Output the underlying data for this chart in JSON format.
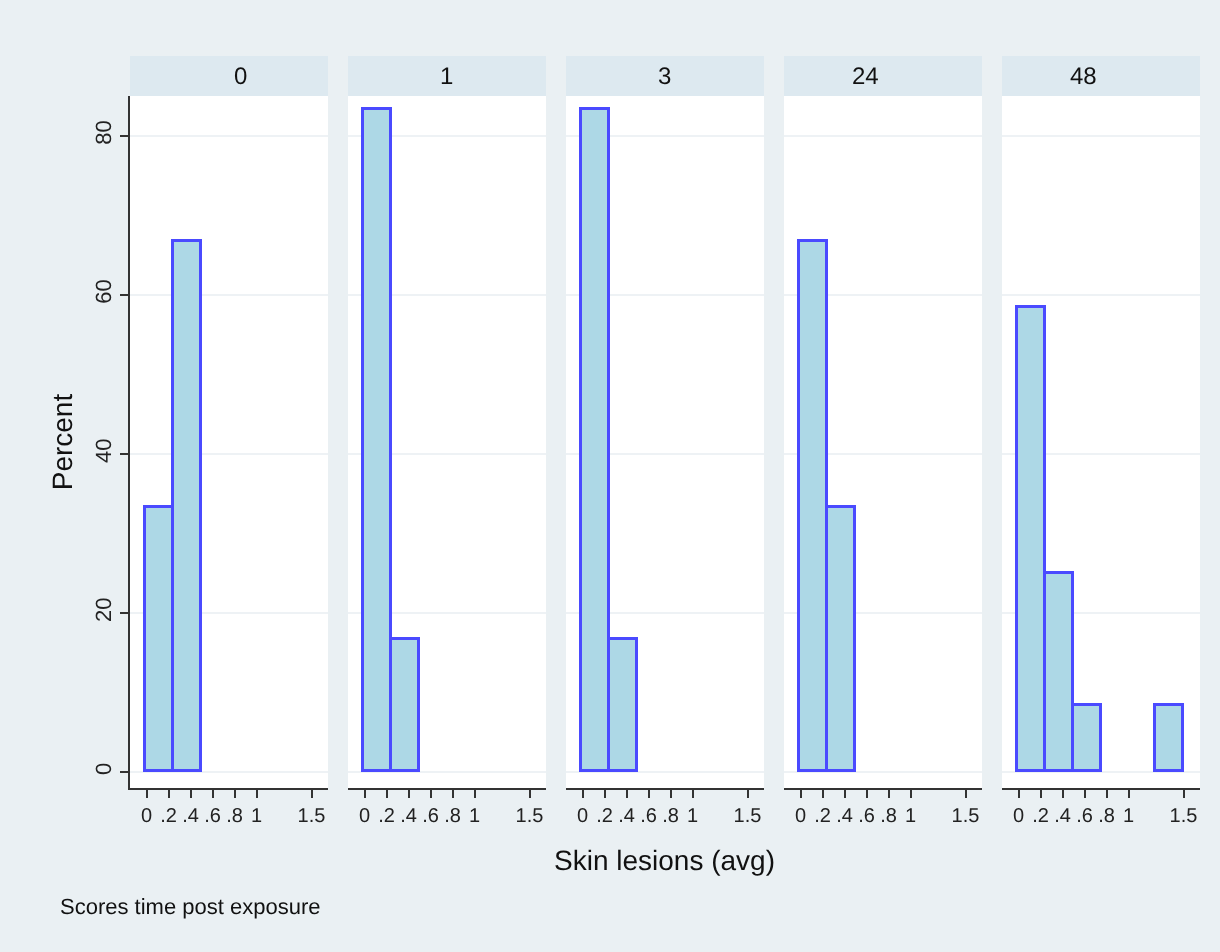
{
  "chart_data": [
    {
      "type": "histogram",
      "title": "0",
      "ylabel": "Percent",
      "annotations": [
        "Scores time post exposure"
      ],
      "bins": [
        0,
        0.25,
        0.5
      ],
      "values": [
        33.3,
        66.7
      ],
      "color": "#add8e6",
      "xlim": [
        -0.15,
        1.65
      ],
      "ylim": [
        -2,
        85
      ],
      "xticks": [
        0,
        {
          "value": 0.2,
          "label": ".2"
        },
        {
          "value": 0.4,
          "label": ".4"
        },
        {
          "value": 0.6,
          "label": ".6"
        },
        {
          "value": 0.8,
          "label": ".8"
        },
        1,
        1.5
      ],
      "yticks": [
        0,
        20,
        40,
        60,
        80
      ],
      "grid": "y"
    },
    {
      "type": "histogram",
      "title": "1",
      "bins": [
        0,
        0.25,
        0.5
      ],
      "values": [
        83.3,
        16.7
      ],
      "color": "#add8e6",
      "xlim": [
        -0.15,
        1.65
      ],
      "ylim": [
        -2,
        85
      ],
      "xticks": [
        0,
        {
          "value": 0.2,
          "label": ".2"
        },
        {
          "value": 0.4,
          "label": ".4"
        },
        {
          "value": 0.6,
          "label": ".6"
        },
        {
          "value": 0.8,
          "label": ".8"
        },
        1,
        1.5
      ],
      "yticks": [
        0,
        20,
        40,
        60,
        80
      ],
      "grid": "y",
      "tick_labels": "x"
    },
    {
      "type": "histogram",
      "title": "3",
      "xlabel": "Skin lesions (avg)",
      "bins": [
        0,
        0.25,
        0.5
      ],
      "values": [
        83.3,
        16.7
      ],
      "color": "#add8e6",
      "xlim": [
        -0.15,
        1.65
      ],
      "ylim": [
        -2,
        85
      ],
      "xticks": [
        0,
        {
          "value": 0.2,
          "label": ".2"
        },
        {
          "value": 0.4,
          "label": ".4"
        },
        {
          "value": 0.6,
          "label": ".6"
        },
        {
          "value": 0.8,
          "label": ".8"
        },
        1,
        1.5
      ],
      "yticks": [
        0,
        20,
        40,
        60,
        80
      ],
      "grid": "y",
      "tick_labels": "x"
    },
    {
      "type": "histogram",
      "title": "24",
      "bins": [
        0,
        0.25,
        0.5
      ],
      "values": [
        66.7,
        33.3
      ],
      "color": "#add8e6",
      "xlim": [
        -0.15,
        1.65
      ],
      "ylim": [
        -2,
        85
      ],
      "xticks": [
        0,
        {
          "value": 0.2,
          "label": ".2"
        },
        {
          "value": 0.4,
          "label": ".4"
        },
        {
          "value": 0.6,
          "label": ".6"
        },
        {
          "value": 0.8,
          "label": ".8"
        },
        1,
        1.5
      ],
      "yticks": [
        0,
        20,
        40,
        60,
        80
      ],
      "grid": "y",
      "tick_labels": "x"
    },
    {
      "type": "histogram",
      "title": "48",
      "bins": [
        0,
        0.25,
        0.5,
        0.75,
        1,
        1.25,
        1.5
      ],
      "values": [
        58.3,
        25,
        8.3,
        0,
        0,
        8.3
      ],
      "color": "#add8e6",
      "xlim": [
        -0.15,
        1.65
      ],
      "ylim": [
        -2,
        85
      ],
      "xticks": [
        0,
        {
          "value": 0.2,
          "label": ".2"
        },
        {
          "value": 0.4,
          "label": ".4"
        },
        {
          "value": 0.6,
          "label": ".6"
        },
        {
          "value": 0.8,
          "label": ".8"
        },
        1,
        1.5
      ],
      "yticks": [
        0,
        20,
        40,
        60,
        80
      ],
      "grid": "y",
      "tick_labels": "x"
    }
  ]
}
